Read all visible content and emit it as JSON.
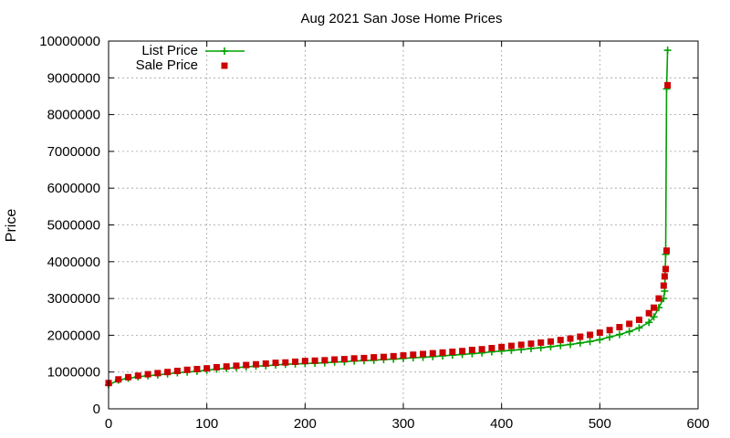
{
  "chart_data": {
    "type": "line",
    "title": "Aug 2021 San Jose Home Prices",
    "xlabel": "",
    "ylabel": "Price",
    "xlim": [
      0,
      600
    ],
    "ylim": [
      0,
      10000000
    ],
    "xticks": [
      0,
      100,
      200,
      300,
      400,
      500,
      600
    ],
    "yticks": [
      0,
      1000000,
      2000000,
      3000000,
      4000000,
      5000000,
      6000000,
      7000000,
      8000000,
      9000000,
      10000000
    ],
    "grid": true,
    "legend_position": "top-left",
    "series": [
      {
        "name": "List Price",
        "color": "#00a000",
        "marker": "plus",
        "style": "line+points",
        "x": [
          0,
          10,
          20,
          30,
          40,
          50,
          60,
          70,
          80,
          90,
          100,
          110,
          120,
          130,
          140,
          150,
          160,
          170,
          180,
          190,
          200,
          210,
          220,
          230,
          240,
          250,
          260,
          270,
          280,
          290,
          300,
          310,
          320,
          330,
          340,
          350,
          360,
          370,
          380,
          390,
          400,
          410,
          420,
          430,
          440,
          450,
          460,
          470,
          480,
          490,
          500,
          510,
          520,
          530,
          540,
          550,
          555,
          560,
          565,
          566,
          567,
          568,
          569
        ],
        "values": [
          650000,
          780000,
          830000,
          870000,
          900000,
          920000,
          950000,
          980000,
          1000000,
          1020000,
          1050000,
          1080000,
          1100000,
          1120000,
          1140000,
          1160000,
          1170000,
          1190000,
          1210000,
          1220000,
          1230000,
          1240000,
          1250000,
          1270000,
          1280000,
          1300000,
          1310000,
          1320000,
          1340000,
          1350000,
          1370000,
          1390000,
          1400000,
          1420000,
          1440000,
          1460000,
          1480000,
          1500000,
          1520000,
          1550000,
          1570000,
          1590000,
          1610000,
          1640000,
          1660000,
          1690000,
          1720000,
          1750000,
          1790000,
          1830000,
          1880000,
          1950000,
          2020000,
          2100000,
          2200000,
          2350000,
          2500000,
          2750000,
          3000000,
          3200000,
          4200000,
          8700000,
          9750000
        ]
      },
      {
        "name": "Sale Price",
        "color": "#cc0000",
        "marker": "square",
        "style": "points",
        "x": [
          0,
          10,
          20,
          30,
          40,
          50,
          60,
          70,
          80,
          90,
          100,
          110,
          120,
          130,
          140,
          150,
          160,
          170,
          180,
          190,
          200,
          210,
          220,
          230,
          240,
          250,
          260,
          270,
          280,
          290,
          300,
          310,
          320,
          330,
          340,
          350,
          360,
          370,
          380,
          390,
          400,
          410,
          420,
          430,
          440,
          450,
          460,
          470,
          480,
          490,
          500,
          510,
          520,
          530,
          540,
          550,
          555,
          560,
          565,
          566,
          567,
          568,
          569
        ],
        "values": [
          700000,
          800000,
          860000,
          900000,
          940000,
          970000,
          1000000,
          1030000,
          1060000,
          1080000,
          1100000,
          1130000,
          1150000,
          1170000,
          1190000,
          1210000,
          1230000,
          1250000,
          1260000,
          1280000,
          1300000,
          1310000,
          1320000,
          1340000,
          1350000,
          1370000,
          1380000,
          1400000,
          1410000,
          1430000,
          1450000,
          1470000,
          1490000,
          1510000,
          1530000,
          1550000,
          1570000,
          1600000,
          1620000,
          1650000,
          1680000,
          1710000,
          1740000,
          1770000,
          1800000,
          1830000,
          1870000,
          1910000,
          1960000,
          2010000,
          2070000,
          2140000,
          2220000,
          2310000,
          2420000,
          2600000,
          2750000,
          3000000,
          3350000,
          3600000,
          3800000,
          4300000,
          8800000
        ]
      }
    ]
  }
}
